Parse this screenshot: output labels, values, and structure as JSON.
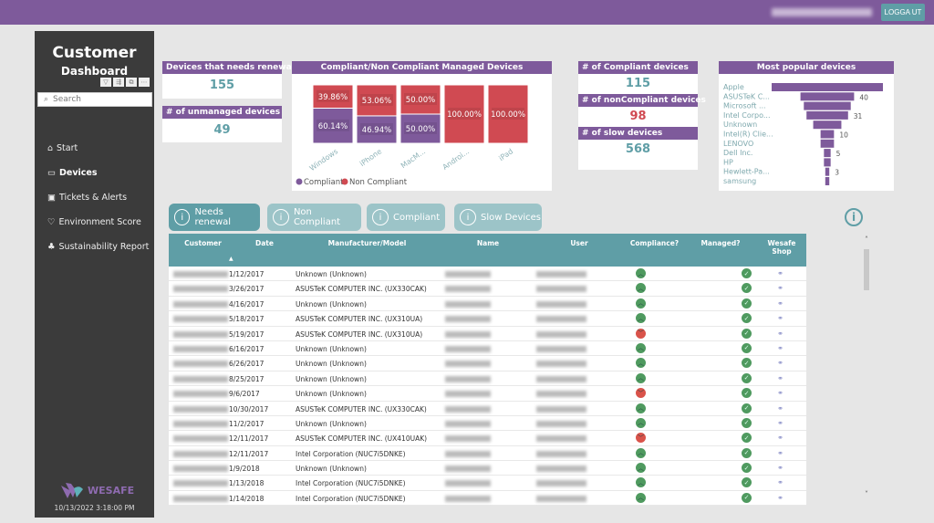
{
  "header": {
    "logout_label": "LOGGA UT"
  },
  "sidebar": {
    "title": "Customer",
    "subtitle": "Dashboard",
    "search_placeholder": "Search",
    "items": [
      {
        "icon": "home-icon",
        "glyph": "⌂",
        "label": "Start",
        "active": false
      },
      {
        "icon": "laptop-icon",
        "glyph": "▭",
        "label": "Devices",
        "active": true
      },
      {
        "icon": "ticket-icon",
        "glyph": "▣",
        "label": "Tickets & Alerts",
        "active": false
      },
      {
        "icon": "shield-icon",
        "glyph": "♡",
        "label": "Environment Score",
        "active": false
      },
      {
        "icon": "leaf-icon",
        "glyph": "♣",
        "label": "Sustainability Report",
        "active": false
      }
    ],
    "logo": "WESAFE",
    "timestamp": "10/13/2022 3:18:00 PM"
  },
  "kpis": {
    "renewal": {
      "label": "Devices that needs renewal",
      "value": "155"
    },
    "unmanaged": {
      "label": "# of unmanaged devices",
      "value": "49"
    },
    "compliant": {
      "label": "# of Compliant devices",
      "value": "115"
    },
    "noncompliant": {
      "label": "# of nonCompliant devices",
      "value": "98"
    },
    "slow": {
      "label": "# of slow devices",
      "value": "568"
    }
  },
  "colors": {
    "purple": "#7e5a9b",
    "teal": "#5f9ea6",
    "red": "#d04a52",
    "green": "#4f9a5f"
  },
  "chart_data": [
    {
      "type": "bar",
      "stacked": "100%",
      "title": "Compliant/Non Compliant Managed Devices",
      "categories": [
        "Windows",
        "iPhone",
        "MacM...",
        "Androi...",
        "iPad"
      ],
      "series": [
        {
          "name": "Compliant",
          "values": [
            60.14,
            46.94,
            50.0,
            0,
            0
          ],
          "labels": [
            "60.14%",
            "46.94%",
            "50.00%",
            "",
            ""
          ]
        },
        {
          "name": "Non Compliant",
          "values": [
            39.86,
            53.06,
            50.0,
            100,
            100
          ],
          "labels": [
            "39.86%",
            "53.06%",
            "50.00%",
            "100.00%",
            "100.00%"
          ]
        }
      ],
      "legend": "bottom-left"
    },
    {
      "type": "bar",
      "orientation": "funnel",
      "title": "Most popular devices",
      "categories": [
        "Apple",
        "ASUSTeK C...",
        "Microsoft ...",
        "Intel Corpo...",
        "Unknown",
        "Intel(R) Clie...",
        "LENOVO",
        "Dell Inc.",
        "HP",
        "Hewlett-Pa...",
        "samsung"
      ],
      "values": [
        83,
        40,
        35,
        31,
        21,
        10,
        10,
        5,
        5,
        3,
        3
      ],
      "data_labels": [
        "",
        "40",
        "",
        "31",
        "",
        "10",
        "",
        "5",
        "",
        "3",
        ""
      ]
    }
  ],
  "filters": [
    {
      "label": "Needs renewal",
      "active": true
    },
    {
      "label": "Non Compliant",
      "active": false
    },
    {
      "label": "Compliant",
      "active": false
    },
    {
      "label": "Slow Devices",
      "active": false
    }
  ],
  "table": {
    "columns": [
      "Customer",
      "Date",
      "Manufacturer/Model",
      "Name",
      "User",
      "Compliance?",
      "Managed?",
      "Wesafe Shop"
    ],
    "rows": [
      {
        "date": "1/12/2017",
        "model": "Unknown (Unknown)",
        "compliant": true,
        "managed": true
      },
      {
        "date": "3/26/2017",
        "model": "ASUSTeK COMPUTER INC. (UX330CAK)",
        "compliant": true,
        "managed": true
      },
      {
        "date": "4/16/2017",
        "model": "Unknown (Unknown)",
        "compliant": true,
        "managed": true
      },
      {
        "date": "5/18/2017",
        "model": "ASUSTeK COMPUTER INC. (UX310UA)",
        "compliant": true,
        "managed": true
      },
      {
        "date": "5/19/2017",
        "model": "ASUSTeK COMPUTER INC. (UX310UA)",
        "compliant": false,
        "managed": true
      },
      {
        "date": "6/16/2017",
        "model": "Unknown (Unknown)",
        "compliant": true,
        "managed": true
      },
      {
        "date": "6/26/2017",
        "model": "Unknown (Unknown)",
        "compliant": true,
        "managed": true
      },
      {
        "date": "8/25/2017",
        "model": "Unknown (Unknown)",
        "compliant": true,
        "managed": true
      },
      {
        "date": "9/6/2017",
        "model": "Unknown (Unknown)",
        "compliant": false,
        "managed": true
      },
      {
        "date": "10/30/2017",
        "model": "ASUSTeK COMPUTER INC. (UX330CAK)",
        "compliant": true,
        "managed": true
      },
      {
        "date": "11/2/2017",
        "model": "Unknown (Unknown)",
        "compliant": true,
        "managed": true
      },
      {
        "date": "12/11/2017",
        "model": "ASUSTeK COMPUTER INC. (UX410UAK)",
        "compliant": false,
        "managed": true
      },
      {
        "date": "12/11/2017",
        "model": "Intel Corporation (NUC7i5DNKE)",
        "compliant": true,
        "managed": true
      },
      {
        "date": "1/9/2018",
        "model": "Unknown (Unknown)",
        "compliant": true,
        "managed": true
      },
      {
        "date": "1/13/2018",
        "model": "Intel Corporation (NUC7i5DNKE)",
        "compliant": true,
        "managed": true
      },
      {
        "date": "1/14/2018",
        "model": "Intel Corporation (NUC7i5DNKE)",
        "compliant": true,
        "managed": true
      }
    ]
  }
}
